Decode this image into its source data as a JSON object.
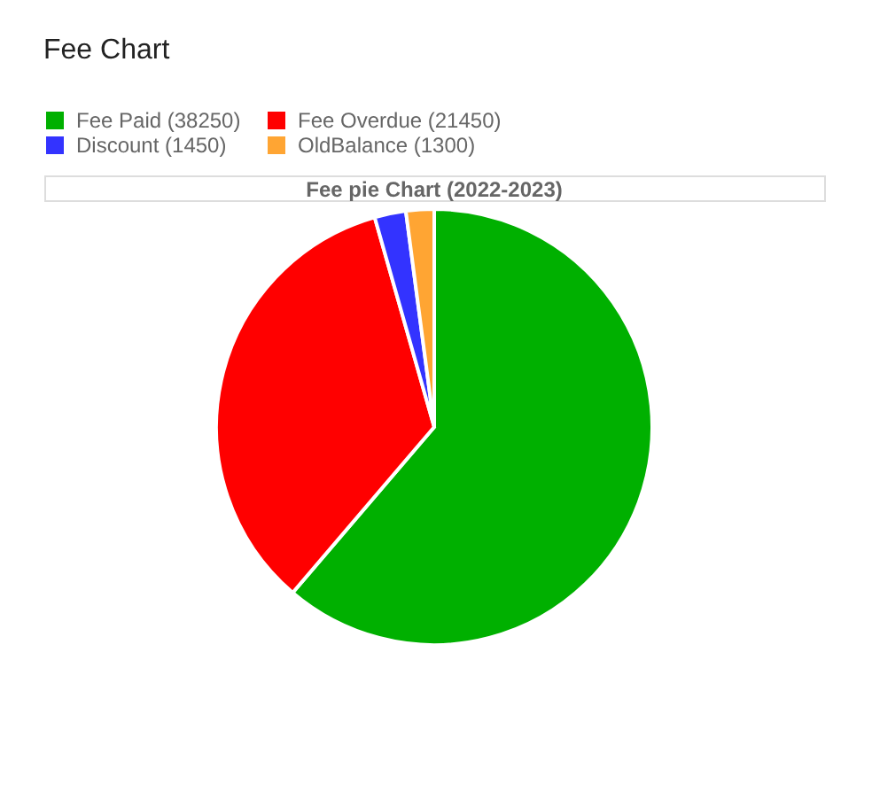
{
  "chart_data": {
    "type": "pie",
    "title": "Fee Chart",
    "subtitle": "Fee pie Chart (2022-2023)",
    "categories": [
      "Fee Paid (38250)",
      "Fee Overdue (21450)",
      "Discount (1450)",
      "OldBalance (1300)"
    ],
    "values": [
      38250,
      21450,
      1450,
      1300
    ],
    "colors": [
      "#00b000",
      "#ff0000",
      "#3333ff",
      "#ffa533"
    ],
    "legend": "top"
  }
}
